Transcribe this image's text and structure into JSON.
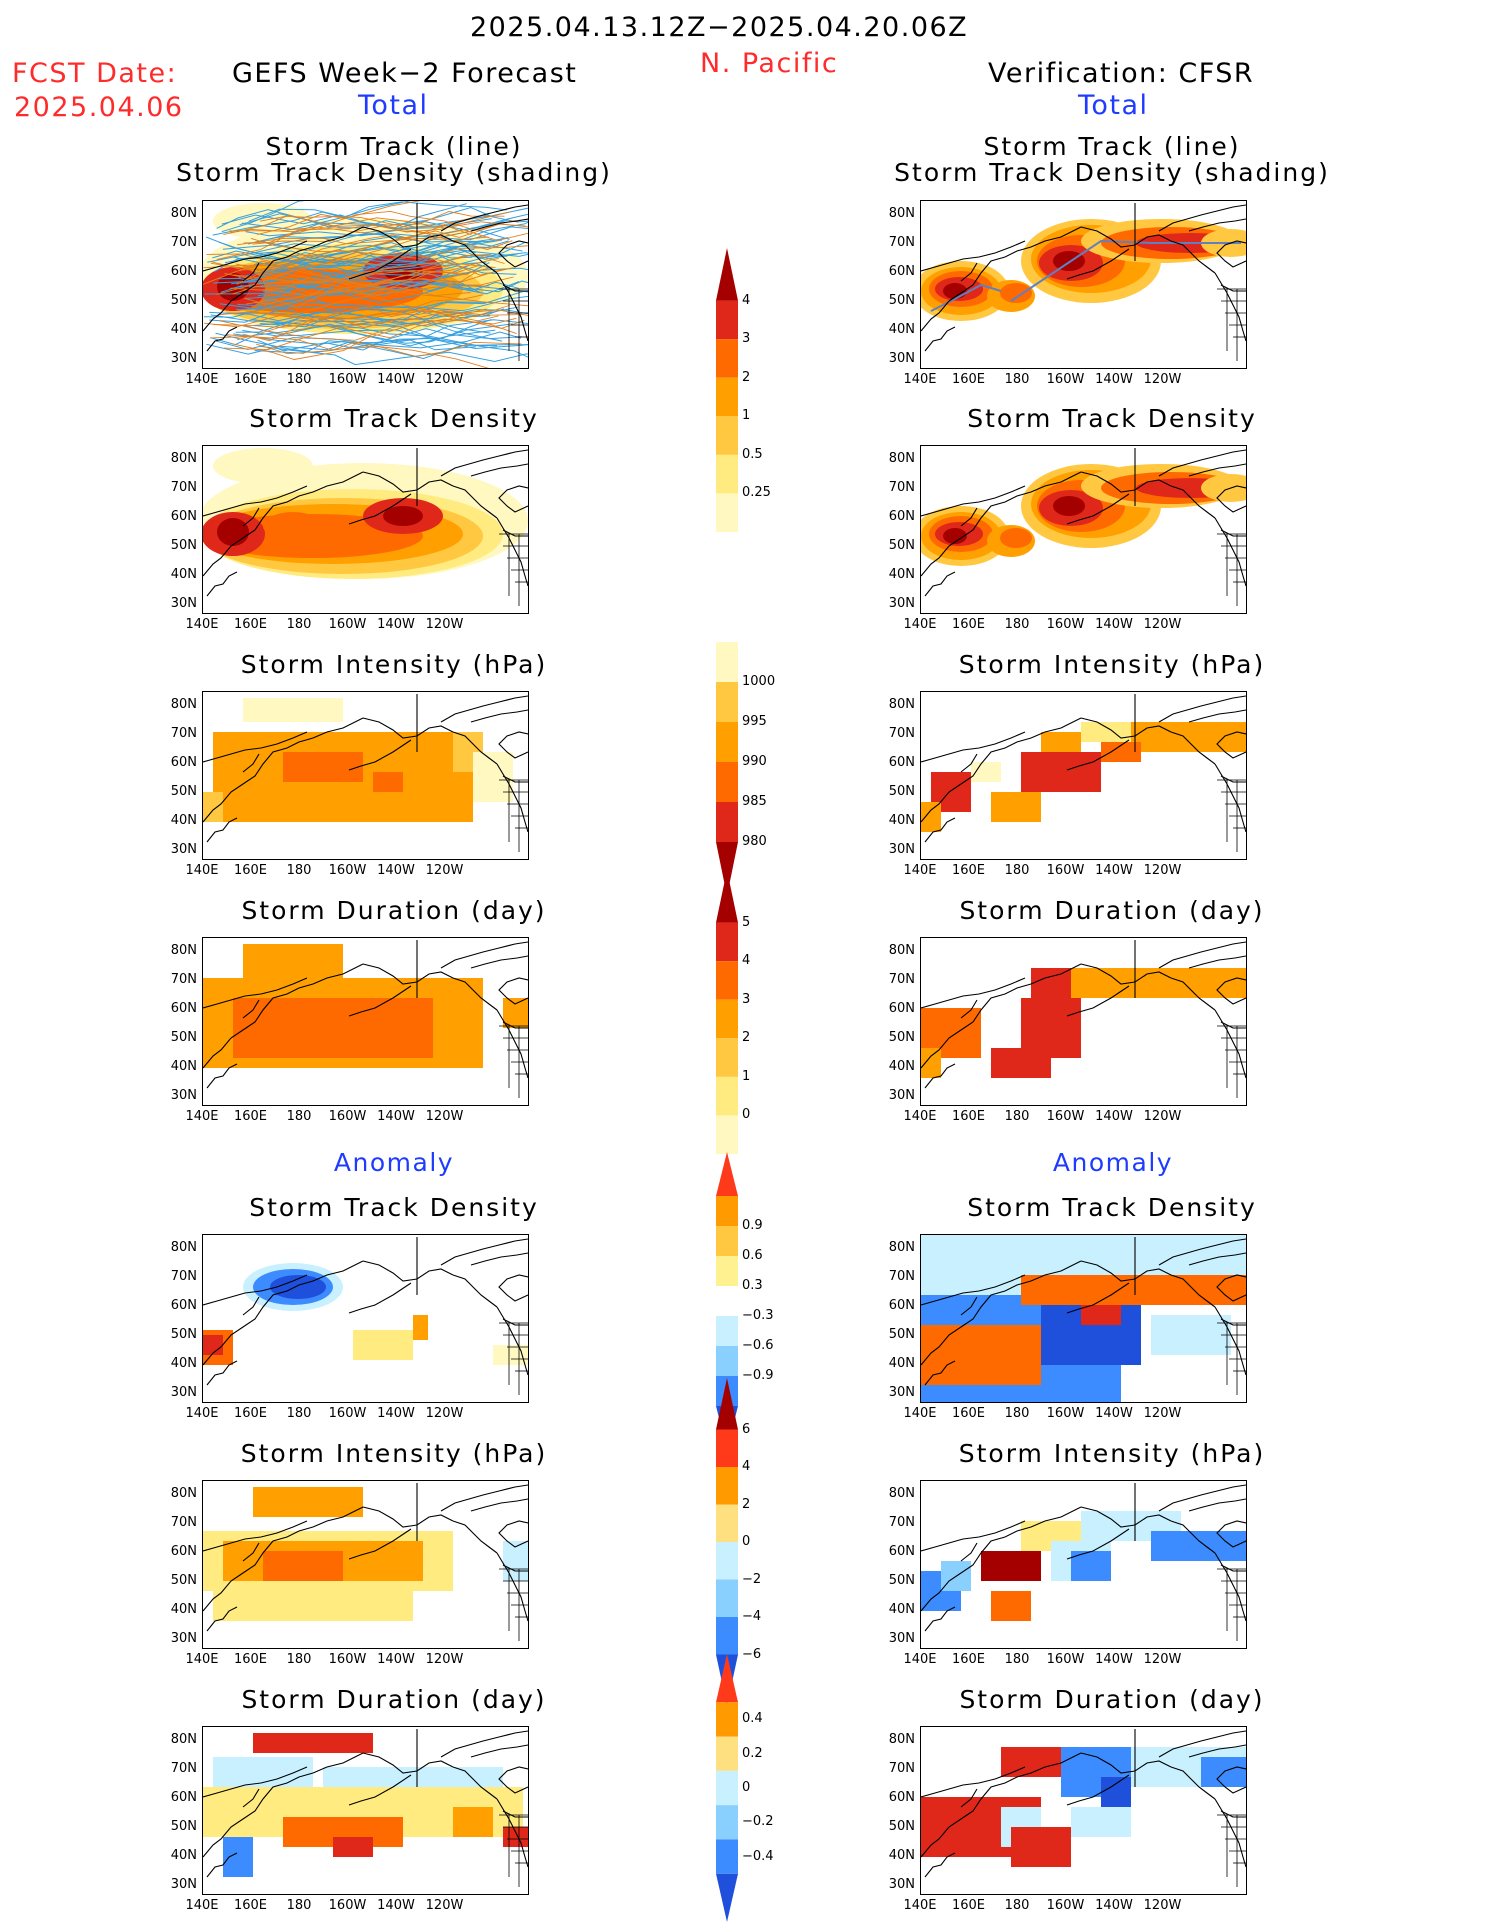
{
  "header": {
    "date_range": "2025.04.13.12Z−2025.04.20.06Z",
    "region": "N. Pacific",
    "fcst_label": "FCST Date:",
    "fcst_date": "2025.04.06",
    "left_title": "GEFS Week−2 Forecast",
    "right_title": "Verification: CFSR",
    "left_total": "Total",
    "right_total": "Total",
    "left_anomaly": "Anomaly",
    "right_anomaly": "Anomaly"
  },
  "axes": {
    "y_ticks": [
      "80N",
      "70N",
      "60N",
      "50N",
      "40N",
      "30N"
    ],
    "x_ticks": [
      "140E",
      "160E",
      "180",
      "160W",
      "140W",
      "120W"
    ]
  },
  "panels": {
    "left": [
      {
        "title_line1": "Storm Track (line)",
        "title_line2": "Storm Track Density (shading)"
      },
      {
        "title": "Storm Track Density"
      },
      {
        "title": "Storm Intensity (hPa)"
      },
      {
        "title": "Storm Duration (day)"
      },
      {
        "title": "Storm Track Density"
      },
      {
        "title": "Storm Intensity (hPa)"
      },
      {
        "title": "Storm Duration (day)"
      }
    ],
    "right": [
      {
        "title_line1": "Storm Track (line)",
        "title_line2": "Storm Track Density (shading)"
      },
      {
        "title": "Storm Track Density"
      },
      {
        "title": "Storm Intensity (hPa)"
      },
      {
        "title": "Storm Duration (day)"
      },
      {
        "title": "Storm Track Density"
      },
      {
        "title": "Storm Intensity (hPa)"
      },
      {
        "title": "Storm Duration (day)"
      }
    ]
  },
  "colorbars": [
    {
      "labels": [
        "4",
        "3",
        "2",
        "1",
        "0.5",
        "0.25"
      ],
      "colors": [
        "#a50000",
        "#e0281a",
        "#ff6a00",
        "#ffa000",
        "#ffc840",
        "#ffeb80",
        "#fff8c0"
      ],
      "extend_top": true,
      "extend_bottom": false
    },
    {
      "labels": [
        "1000",
        "995",
        "990",
        "985",
        "980"
      ],
      "colors": [
        "#fff8c0",
        "#ffc840",
        "#ffa000",
        "#ff6a00",
        "#e0281a",
        "#a50000"
      ],
      "extend_top": false,
      "extend_bottom": true
    },
    {
      "labels": [
        "5",
        "4",
        "3",
        "2",
        "1",
        "0"
      ],
      "colors": [
        "#a50000",
        "#e0281a",
        "#ff6a00",
        "#ffa000",
        "#ffc840",
        "#ffeb80",
        "#fff8c0"
      ],
      "extend_top": true,
      "extend_bottom": false
    },
    {
      "labels": [
        "0.9",
        "0.6",
        "0.3",
        "−0.3",
        "−0.6",
        "−0.9"
      ],
      "colors": [
        "#ff3a1a",
        "#ff9a00",
        "#ffc840",
        "#fff090",
        "#ffffff",
        "#c8f0ff",
        "#8ad0ff",
        "#3c8cff",
        "#1e50dc"
      ],
      "extend_top": true,
      "extend_bottom": true
    },
    {
      "labels": [
        "6",
        "4",
        "2",
        "0",
        "−2",
        "−4",
        "−6"
      ],
      "colors": [
        "#a50000",
        "#ff3a1a",
        "#ff9a00",
        "#ffe080",
        "#c8f0ff",
        "#8ad0ff",
        "#3c8cff",
        "#1e50dc"
      ],
      "extend_top": true,
      "extend_bottom": true
    },
    {
      "labels": [
        "0.4",
        "0.2",
        "0",
        "−0.2",
        "−0.4"
      ],
      "colors": [
        "#ff3a1a",
        "#ff9a00",
        "#ffe080",
        "#c8f0ff",
        "#8ad0ff",
        "#3c8cff",
        "#1e50dc"
      ],
      "extend_top": true,
      "extend_bottom": true
    }
  ]
}
